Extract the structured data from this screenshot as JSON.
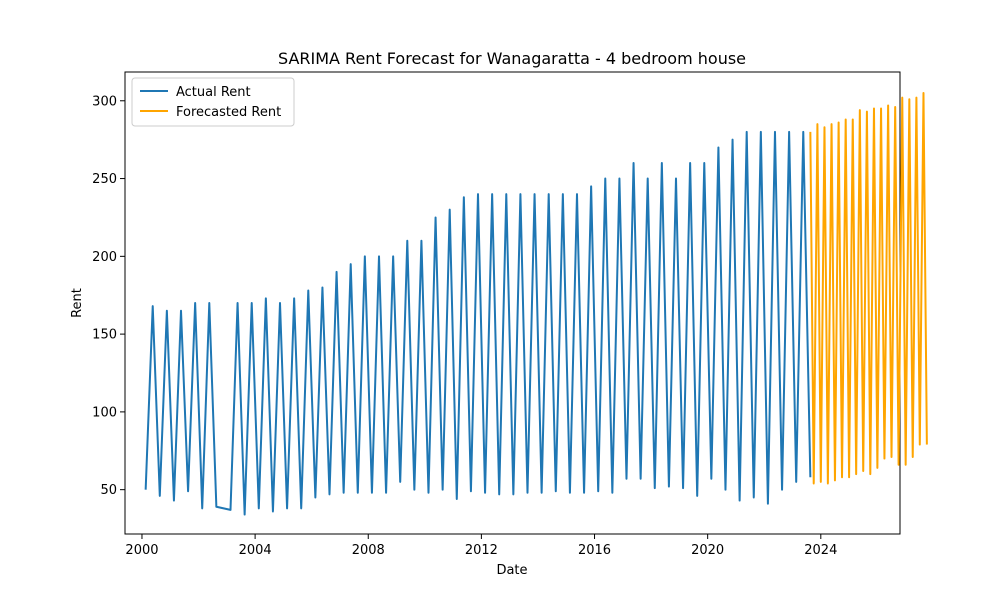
{
  "chart_data": {
    "type": "line",
    "title": "SARIMA Rent Forecast for Wanagaratta - 4 bedroom house",
    "xlabel": "Date",
    "ylabel": "Rent",
    "xlim": [
      1999.4,
      2026.8
    ],
    "ylim": [
      21.5,
      318.5
    ],
    "x_ticks": [
      2000,
      2004,
      2008,
      2012,
      2016,
      2020,
      2024
    ],
    "y_ticks": [
      50,
      100,
      150,
      200,
      250,
      300
    ],
    "grid": false,
    "legend": "upper left",
    "series": [
      {
        "name": "Actual Rent",
        "color": "#1f77b4",
        "points": [
          [
            2000.13,
            50
          ],
          [
            2000.38,
            168
          ],
          [
            2000.63,
            46
          ],
          [
            2000.88,
            165
          ],
          [
            2001.13,
            43
          ],
          [
            2001.38,
            165
          ],
          [
            2001.63,
            49
          ],
          [
            2001.88,
            170
          ],
          [
            2002.13,
            38
          ],
          [
            2002.38,
            170
          ],
          [
            2002.63,
            39
          ],
          [
            2003.13,
            37
          ],
          [
            2003.38,
            170
          ],
          [
            2003.63,
            34
          ],
          [
            2003.88,
            170
          ],
          [
            2004.13,
            38
          ],
          [
            2004.38,
            173
          ],
          [
            2004.63,
            36
          ],
          [
            2004.88,
            170
          ],
          [
            2005.13,
            38
          ],
          [
            2005.38,
            173
          ],
          [
            2005.63,
            38
          ],
          [
            2005.88,
            178
          ],
          [
            2006.13,
            45
          ],
          [
            2006.38,
            180
          ],
          [
            2006.63,
            47
          ],
          [
            2006.88,
            190
          ],
          [
            2007.13,
            48
          ],
          [
            2007.38,
            195
          ],
          [
            2007.63,
            48
          ],
          [
            2007.88,
            200
          ],
          [
            2008.13,
            48
          ],
          [
            2008.38,
            200
          ],
          [
            2008.63,
            48
          ],
          [
            2008.88,
            200
          ],
          [
            2009.13,
            55
          ],
          [
            2009.38,
            210
          ],
          [
            2009.63,
            50
          ],
          [
            2009.88,
            210
          ],
          [
            2010.13,
            48
          ],
          [
            2010.38,
            225
          ],
          [
            2010.63,
            50
          ],
          [
            2010.88,
            230
          ],
          [
            2011.13,
            44
          ],
          [
            2011.38,
            238
          ],
          [
            2011.63,
            49
          ],
          [
            2011.88,
            240
          ],
          [
            2012.13,
            48
          ],
          [
            2012.38,
            240
          ],
          [
            2012.63,
            47
          ],
          [
            2012.88,
            240
          ],
          [
            2013.13,
            47
          ],
          [
            2013.38,
            240
          ],
          [
            2013.63,
            48
          ],
          [
            2013.88,
            240
          ],
          [
            2014.13,
            48
          ],
          [
            2014.38,
            240
          ],
          [
            2014.63,
            49
          ],
          [
            2014.88,
            240
          ],
          [
            2015.13,
            48
          ],
          [
            2015.38,
            240
          ],
          [
            2015.63,
            48
          ],
          [
            2015.88,
            245
          ],
          [
            2016.13,
            49
          ],
          [
            2016.38,
            250
          ],
          [
            2016.63,
            48
          ],
          [
            2016.88,
            250
          ],
          [
            2017.13,
            57
          ],
          [
            2017.38,
            260
          ],
          [
            2017.63,
            57
          ],
          [
            2017.88,
            250
          ],
          [
            2018.13,
            51
          ],
          [
            2018.38,
            260
          ],
          [
            2018.63,
            52
          ],
          [
            2018.88,
            250
          ],
          [
            2019.13,
            51
          ],
          [
            2019.38,
            260
          ],
          [
            2019.63,
            46
          ],
          [
            2019.88,
            260
          ],
          [
            2020.13,
            57
          ],
          [
            2020.38,
            270
          ],
          [
            2020.63,
            50
          ],
          [
            2020.88,
            275
          ],
          [
            2021.13,
            43
          ],
          [
            2021.38,
            280
          ],
          [
            2021.63,
            45
          ],
          [
            2021.88,
            280
          ],
          [
            2022.13,
            41
          ],
          [
            2022.38,
            280
          ],
          [
            2022.63,
            50
          ],
          [
            2022.88,
            280
          ],
          [
            2023.13,
            55
          ],
          [
            2023.38,
            280
          ],
          [
            2023.63,
            58
          ]
        ]
      },
      {
        "name": "Forecasted Rent",
        "color": "#ffa500",
        "points": [
          [
            2023.63,
            280
          ],
          [
            2023.75,
            54
          ],
          [
            2023.88,
            285
          ],
          [
            2024.0,
            55
          ],
          [
            2024.13,
            283
          ],
          [
            2024.25,
            54
          ],
          [
            2024.38,
            285
          ],
          [
            2024.5,
            56
          ],
          [
            2024.63,
            286
          ],
          [
            2024.75,
            58
          ],
          [
            2024.88,
            288
          ],
          [
            2025.0,
            58
          ],
          [
            2025.13,
            288
          ],
          [
            2025.25,
            60
          ],
          [
            2025.38,
            294
          ],
          [
            2025.5,
            62
          ],
          [
            2025.63,
            293
          ],
          [
            2025.75,
            60
          ],
          [
            2025.88,
            295
          ],
          [
            2026.0,
            64
          ],
          [
            2026.13,
            295
          ],
          [
            2026.25,
            70
          ],
          [
            2026.38,
            297
          ],
          [
            2026.5,
            71
          ],
          [
            2026.63,
            296
          ],
          [
            2026.75,
            66
          ],
          [
            2026.88,
            302
          ],
          [
            2027.0,
            66
          ],
          [
            2027.13,
            301
          ],
          [
            2027.25,
            71
          ],
          [
            2027.38,
            302
          ],
          [
            2027.5,
            79
          ],
          [
            2027.63,
            305
          ],
          [
            2027.75,
            79
          ]
        ]
      }
    ]
  }
}
